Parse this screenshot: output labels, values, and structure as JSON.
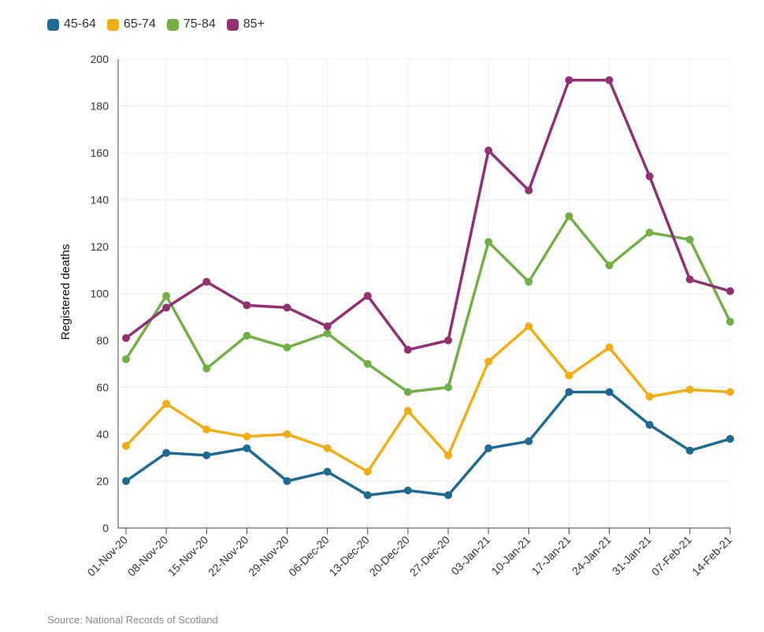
{
  "chart_data": {
    "type": "line",
    "title": "",
    "xlabel": "",
    "ylabel": "Registered deaths",
    "ylim": [
      0,
      200
    ],
    "yticks": [
      0,
      20,
      40,
      60,
      80,
      100,
      120,
      140,
      160,
      180,
      200
    ],
    "grid": true,
    "legend_position": "top-left",
    "categories": [
      "01-Nov-20",
      "08-Nov-20",
      "15-Nov-20",
      "22-Nov-20",
      "29-Nov-20",
      "06-Dec-20",
      "13-Dec-20",
      "20-Dec-20",
      "27-Dec-20",
      "03-Jan-21",
      "10-Jan-21",
      "17-Jan-21",
      "24-Jan-21",
      "31-Jan-21",
      "07-Feb-21",
      "14-Feb-21"
    ],
    "series": [
      {
        "name": "45-64",
        "color": "#1f6a93",
        "values": [
          20,
          32,
          31,
          34,
          20,
          24,
          14,
          16,
          14,
          34,
          37,
          58,
          58,
          44,
          33,
          38
        ]
      },
      {
        "name": "65-74",
        "color": "#f0ae14",
        "values": [
          35,
          53,
          42,
          39,
          40,
          34,
          24,
          50,
          31,
          71,
          86,
          65,
          77,
          56,
          59,
          58
        ]
      },
      {
        "name": "75-84",
        "color": "#72b045",
        "values": [
          72,
          99,
          68,
          82,
          77,
          83,
          70,
          58,
          60,
          122,
          105,
          133,
          112,
          126,
          123,
          88
        ]
      },
      {
        "name": "85+",
        "color": "#923074",
        "values": [
          81,
          94,
          105,
          95,
          94,
          86,
          99,
          76,
          80,
          161,
          144,
          191,
          191,
          150,
          106,
          101
        ]
      }
    ]
  },
  "source": "Source: National Records of Scotland"
}
